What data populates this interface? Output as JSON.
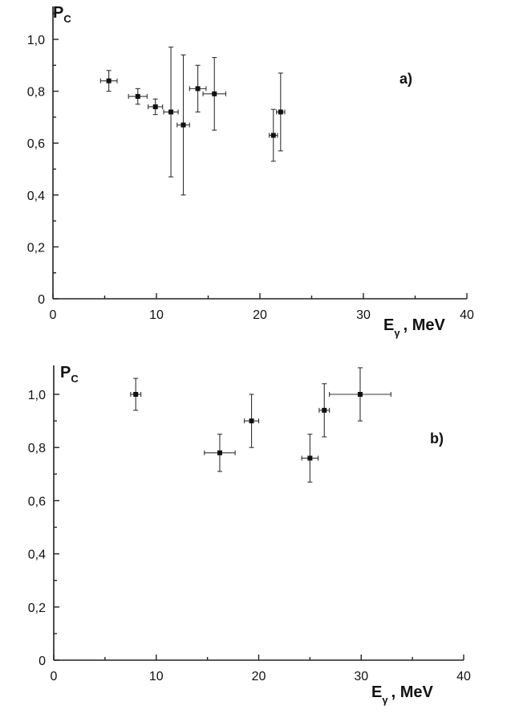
{
  "chart_data": [
    {
      "type": "scatter",
      "panel_label": "a)",
      "ylabel": "P",
      "ylabel_sub": "C",
      "xlabel": "E",
      "xlabel_sub": "γ",
      "xlabel_unit": ", MeV",
      "xlim": [
        0,
        40
      ],
      "ylim": [
        0,
        1.0
      ],
      "xticks": [
        "0",
        "10",
        "20",
        "30",
        "40"
      ],
      "yticks": [
        "0",
        "0,2",
        "0,4",
        "0,6",
        "0,8",
        "1,0"
      ],
      "points": [
        {
          "x": 5.4,
          "y": 0.84,
          "xerr": 0.8,
          "yerr": 0.04
        },
        {
          "x": 8.2,
          "y": 0.78,
          "xerr": 0.9,
          "yerr": 0.03
        },
        {
          "x": 9.9,
          "y": 0.74,
          "xerr": 0.7,
          "yerr": 0.03
        },
        {
          "x": 11.4,
          "y": 0.72,
          "xerr": 0.7,
          "yerr": 0.25
        },
        {
          "x": 12.6,
          "y": 0.67,
          "xerr": 0.6,
          "yerr": 0.27
        },
        {
          "x": 14.0,
          "y": 0.81,
          "xerr": 0.8,
          "yerr": 0.09
        },
        {
          "x": 15.6,
          "y": 0.79,
          "xerr": 1.1,
          "yerr": 0.14
        },
        {
          "x": 21.3,
          "y": 0.63,
          "xerr": 0.4,
          "yerr": 0.1
        },
        {
          "x": 22.0,
          "y": 0.72,
          "xerr": 0.4,
          "yerr": 0.15
        }
      ]
    },
    {
      "type": "scatter",
      "panel_label": "b)",
      "ylabel": "P",
      "ylabel_sub": "C",
      "xlabel": "E",
      "xlabel_sub": "γ",
      "xlabel_unit": ", MeV",
      "xlim": [
        0,
        40
      ],
      "ylim": [
        0,
        1.0
      ],
      "xticks": [
        "0",
        "10",
        "20",
        "30",
        "40"
      ],
      "yticks": [
        "0",
        "0,2",
        "0,4",
        "0,6",
        "0,8",
        "1,0"
      ],
      "points": [
        {
          "x": 8.0,
          "y": 1.0,
          "xerr": 0.5,
          "yerr": 0.06
        },
        {
          "x": 16.2,
          "y": 0.78,
          "xerr": 1.5,
          "yerr": 0.07
        },
        {
          "x": 19.3,
          "y": 0.9,
          "xerr": 0.7,
          "yerr": 0.1
        },
        {
          "x": 25.0,
          "y": 0.76,
          "xerr": 0.8,
          "yerr": 0.09
        },
        {
          "x": 26.4,
          "y": 0.94,
          "xerr": 0.5,
          "yerr": 0.1
        },
        {
          "x": 29.9,
          "y": 1.0,
          "xerr": 3.0,
          "yerr": 0.1
        }
      ]
    }
  ]
}
